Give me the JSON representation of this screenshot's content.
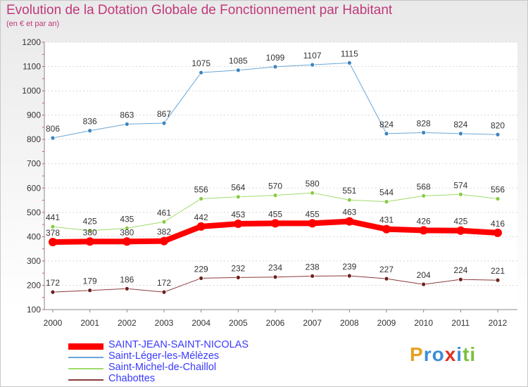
{
  "title": "Evolution de la Dotation Globale de Fonctionnement par Habitant",
  "subtitle": "(en € et par an)",
  "logo": {
    "letters": [
      "P",
      "r",
      "o",
      "x",
      "i",
      "t",
      "i"
    ],
    "colors": [
      "#e8a020",
      "#3a8fd8",
      "#3a8fd8",
      "#e03020",
      "#3a8fd8",
      "#7cc040",
      "#7cc040"
    ]
  },
  "chart_data": {
    "type": "line",
    "title": "Evolution de la Dotation Globale de Fonctionnement par Habitant",
    "xlabel": "",
    "ylabel": "",
    "x": [
      "2000",
      "2001",
      "2002",
      "2003",
      "2004",
      "2005",
      "2006",
      "2007",
      "2008",
      "2009",
      "2010",
      "2011",
      "2012"
    ],
    "yticks": [
      "100",
      "200",
      "300",
      "400",
      "500",
      "600",
      "700",
      "800",
      "900",
      "1000",
      "1100",
      "1200"
    ],
    "ylim": [
      100,
      1200
    ],
    "series": [
      {
        "name": "Saint-Léger-les-Mélèzes",
        "color": "#6aa6d6",
        "marker": "#3d84c0",
        "width": 1,
        "values": [
          806,
          836,
          863,
          867,
          1075,
          1085,
          1099,
          1107,
          1115,
          824,
          828,
          824,
          820
        ]
      },
      {
        "name": "Saint-Michel-de-Chaillol",
        "color": "#9fdc6a",
        "marker": "#86cc45",
        "width": 1,
        "values": [
          441,
          425,
          435,
          461,
          556,
          564,
          570,
          580,
          551,
          544,
          568,
          574,
          556
        ]
      },
      {
        "name": "SAINT-JEAN-SAINT-NICOLAS",
        "color": "#ff0000",
        "marker": "#ff0000",
        "width": 8,
        "values": [
          378,
          380,
          380,
          382,
          442,
          453,
          455,
          455,
          463,
          431,
          426,
          425,
          416
        ]
      },
      {
        "name": "Chabottes",
        "color": "#8a3a3a",
        "marker": "#6e1f1f",
        "width": 1,
        "values": [
          172,
          179,
          186,
          172,
          229,
          232,
          234,
          238,
          239,
          227,
          204,
          224,
          221
        ]
      }
    ],
    "legend": [
      "SAINT-JEAN-SAINT-NICOLAS",
      "Saint-Léger-les-Mélèzes",
      "Saint-Michel-de-Chaillol",
      "Chabottes"
    ],
    "legend_position": "bottom-left"
  }
}
